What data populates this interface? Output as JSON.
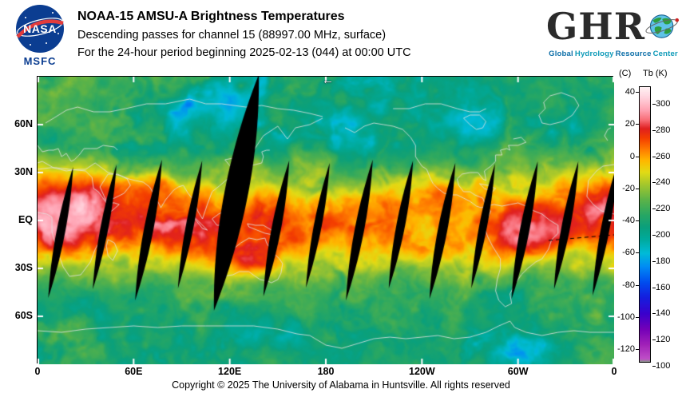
{
  "header": {
    "nasa": {
      "wordmark": "NASA",
      "center": "MSFC"
    },
    "title": "NOAA-15 AMSU-A Brightness Temperatures",
    "subtitle1": "Descending passes for channel 15 (88997.00 MHz, surface)",
    "subtitle2": "For the 24-hour period beginning 2025-02-13 (044) at 00:00 UTC",
    "ghrc": {
      "letters": "GHR",
      "tagline_words": [
        "Global",
        "Hydrology",
        "Resource",
        "Center"
      ],
      "tagline_colors": [
        "#0d6fa8",
        "#0d9ab8",
        "#0d6fa8",
        "#0d9ab8"
      ]
    }
  },
  "map": {
    "cursor_glyph": "←",
    "lat_ticks": [
      {
        "label": "60N",
        "deg": 60
      },
      {
        "label": "30N",
        "deg": 30
      },
      {
        "label": "EQ",
        "deg": 0
      },
      {
        "label": "30S",
        "deg": -30
      },
      {
        "label": "60S",
        "deg": -60
      }
    ],
    "lon_ticks": [
      {
        "label": "0",
        "deg": 0
      },
      {
        "label": "60E",
        "deg": 60
      },
      {
        "label": "120E",
        "deg": 120
      },
      {
        "label": "180",
        "deg": 180
      },
      {
        "label": "120W",
        "deg": 240
      },
      {
        "label": "60W",
        "deg": 300
      },
      {
        "label": "0",
        "deg": 360
      }
    ]
  },
  "colorbar": {
    "left_unit": "(C)",
    "right_unit": "Tb (K)",
    "left_ticks": [
      "40",
      "20",
      "0",
      "-20",
      "-40",
      "-60",
      "-80",
      "-100",
      "-120"
    ],
    "right_ticks": [
      "300",
      "280",
      "260",
      "240",
      "220",
      "200",
      "180",
      "160",
      "140",
      "120",
      "100"
    ],
    "range_k": [
      98,
      318
    ],
    "stops": [
      [
        98,
        "#8f8f8f"
      ],
      [
        100,
        "#c050c8"
      ],
      [
        112,
        "#a020b8"
      ],
      [
        124,
        "#7400b8"
      ],
      [
        136,
        "#3c00cc"
      ],
      [
        150,
        "#1420e0"
      ],
      [
        162,
        "#0050f0"
      ],
      [
        174,
        "#008cf5"
      ],
      [
        185,
        "#00bcd8"
      ],
      [
        196,
        "#00ab9d"
      ],
      [
        206,
        "#0ba07c"
      ],
      [
        216,
        "#2aa863"
      ],
      [
        228,
        "#5eb448"
      ],
      [
        240,
        "#a4c72e"
      ],
      [
        250,
        "#e3dc16"
      ],
      [
        259,
        "#ffb900"
      ],
      [
        268,
        "#ff7d00"
      ],
      [
        277,
        "#f54000"
      ],
      [
        285,
        "#e02020"
      ],
      [
        292,
        "#f96e78"
      ],
      [
        300,
        "#ffa4b4"
      ],
      [
        310,
        "#ffd4de"
      ],
      [
        318,
        "#fff2f5"
      ]
    ]
  },
  "footer": {
    "copyright": "Copyright © 2025 The University of Alabama in Huntsville.  All rights reserved"
  }
}
